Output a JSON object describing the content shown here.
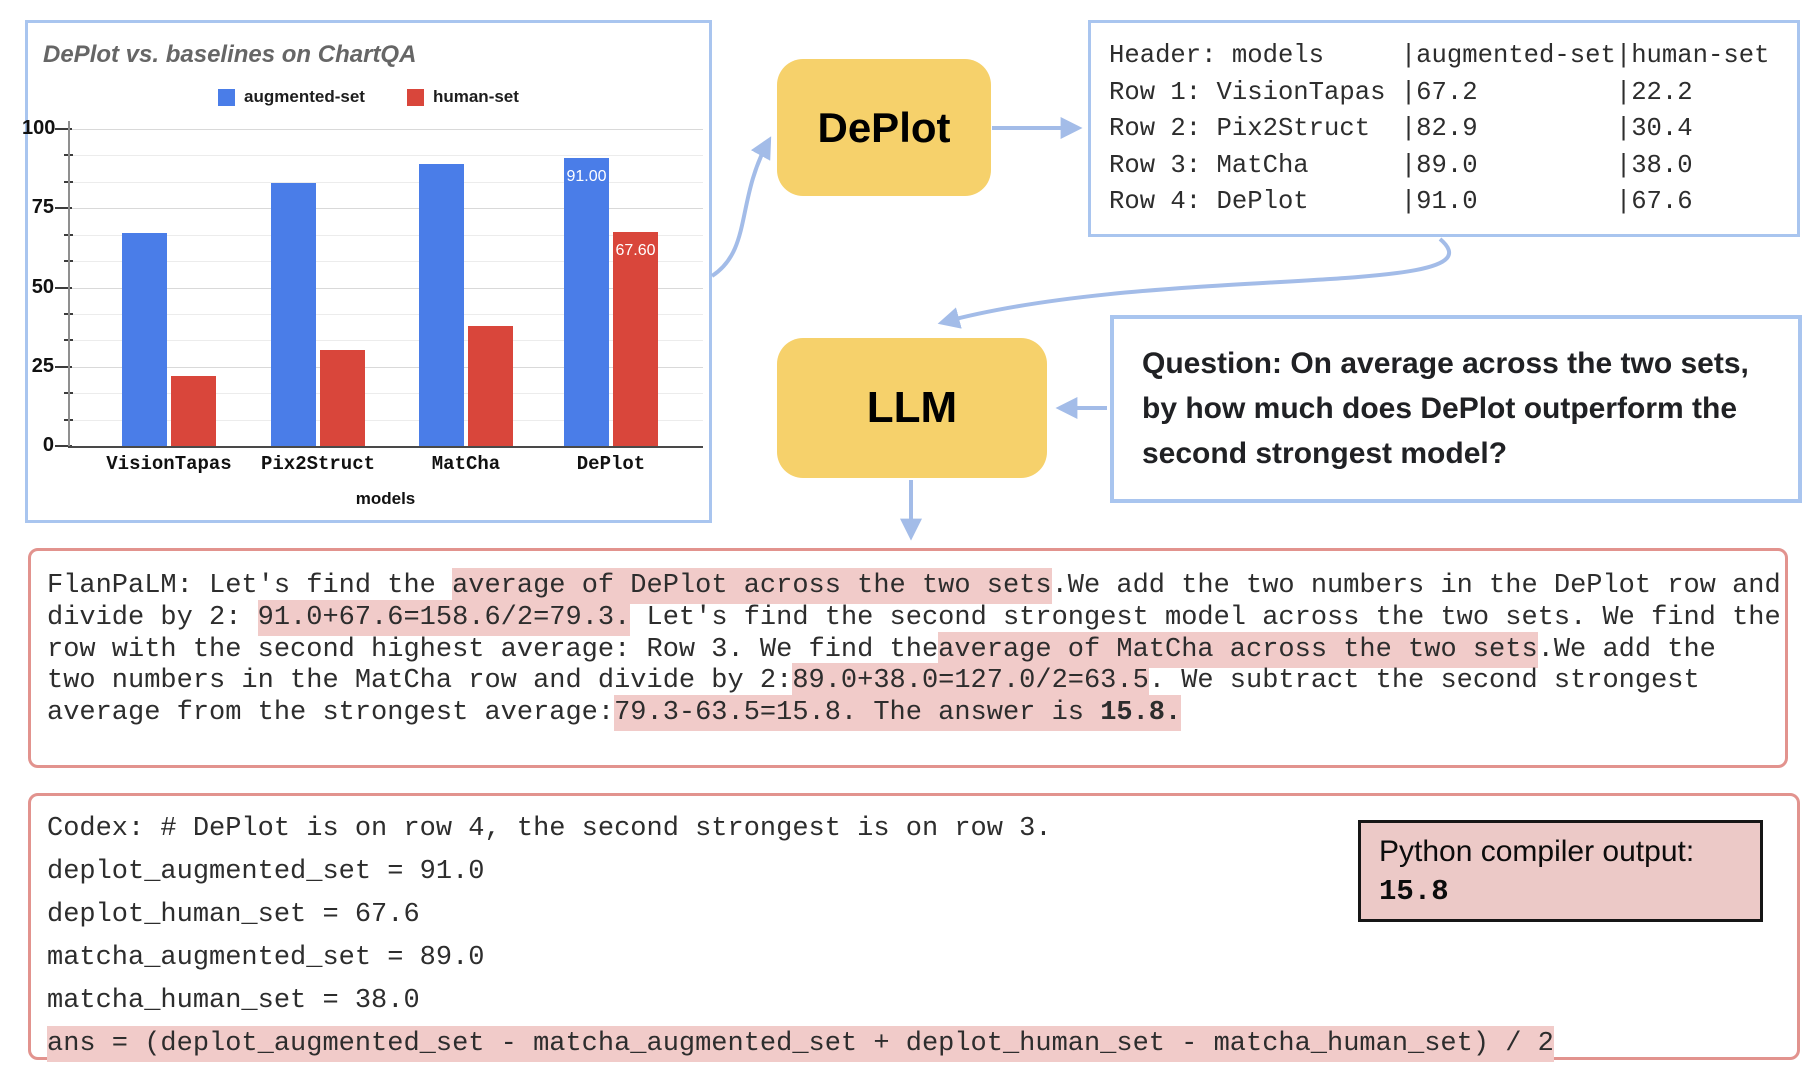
{
  "colors": {
    "accent_blue_border": "#a9c5ef",
    "arrow_blue": "#a3bce8",
    "process_yellow": "#f6d16b",
    "salmon_border": "#e2938e",
    "highlight_pink": "#f1cbc9",
    "python_box_bg": "#ecc9c7",
    "bar_blue": "#4a7de8",
    "bar_red": "#d9463b",
    "title_gray": "#666666"
  },
  "chart_data": {
    "type": "bar",
    "title": "DePlot vs. baselines on ChartQA",
    "xlabel": "models",
    "ylabel": "",
    "categories": [
      "VisionTapas",
      "Pix2Struct",
      "MatCha",
      "DePlot"
    ],
    "series": [
      {
        "name": "augmented-set",
        "color": "#4a7de8",
        "values": [
          67.2,
          82.9,
          89.0,
          91.0
        ]
      },
      {
        "name": "human-set",
        "color": "#d9463b",
        "values": [
          22.2,
          30.4,
          38.0,
          67.6
        ]
      }
    ],
    "ylim": [
      0,
      100
    ],
    "yticks": [
      0,
      25,
      50,
      75,
      100
    ],
    "grid": true,
    "legend_position": "top",
    "value_labels": [
      {
        "category": "DePlot",
        "series": "augmented-set",
        "text": "91.00"
      },
      {
        "category": "DePlot",
        "series": "human-set",
        "text": "67.60"
      }
    ]
  },
  "flow": {
    "deplot_label": "DePlot",
    "llm_label": "LLM"
  },
  "table_box": {
    "lines": [
      "Header: models     |augmented-set|human-set",
      "Row 1: VisionTapas |67.2         |22.2",
      "Row 2: Pix2Struct  |82.9         |30.4",
      "Row 3: MatCha      |89.0         |38.0",
      "Row 4: DePlot      |91.0         |67.6"
    ]
  },
  "question_box": {
    "lines": [
      "Question: On average across the two sets,",
      "by how much does DePlot outperform the",
      "second strongest model?"
    ]
  },
  "flan_box": {
    "lines": [
      [
        {
          "t": "FlanPaLM: Let's find the "
        },
        {
          "t": "average of DePlot across the two sets",
          "hl": true
        },
        {
          "t": ".We add the two numbers in the DePlot row and"
        }
      ],
      [
        {
          "t": "divide by 2: "
        },
        {
          "t": "91.0+67.6=158.6/2=79.3.",
          "hl": true
        },
        {
          "t": " Let's find the second strongest model across the two sets. We find the"
        }
      ],
      [
        {
          "t": "row with the second highest average: Row 3. We find the"
        },
        {
          "t": "average of MatCha across the two sets",
          "hl": true
        },
        {
          "t": ".We add the"
        }
      ],
      [
        {
          "t": "two numbers in the MatCha row and divide by 2:"
        },
        {
          "t": "89.0+38.0=127.0/2=63.5",
          "hl": true
        },
        {
          "t": ". We subtract the second strongest"
        }
      ],
      [
        {
          "t": "average from the strongest average:"
        },
        {
          "t": "79.3-63.5=15.8. The answer is ",
          "hl": true
        },
        {
          "t": "15.8.",
          "hl": true,
          "b": true
        }
      ]
    ]
  },
  "codex_box": {
    "lines": [
      [
        {
          "t": "Codex: # DePlot is on row 4, the second strongest is on row 3."
        }
      ],
      [
        {
          "t": "deplot_augmented_set = 91.0"
        }
      ],
      [
        {
          "t": "deplot_human_set = 67.6"
        }
      ],
      [
        {
          "t": "matcha_augmented_set = 89.0"
        }
      ],
      [
        {
          "t": "matcha_human_set = 38.0"
        }
      ],
      [
        {
          "t": "ans = (deplot_augmented_set - matcha_augmented_set + deplot_human_set - matcha_human_set) / 2",
          "hl": true
        }
      ]
    ]
  },
  "python_output": {
    "label": "Python compiler output:",
    "value": "15.8"
  }
}
